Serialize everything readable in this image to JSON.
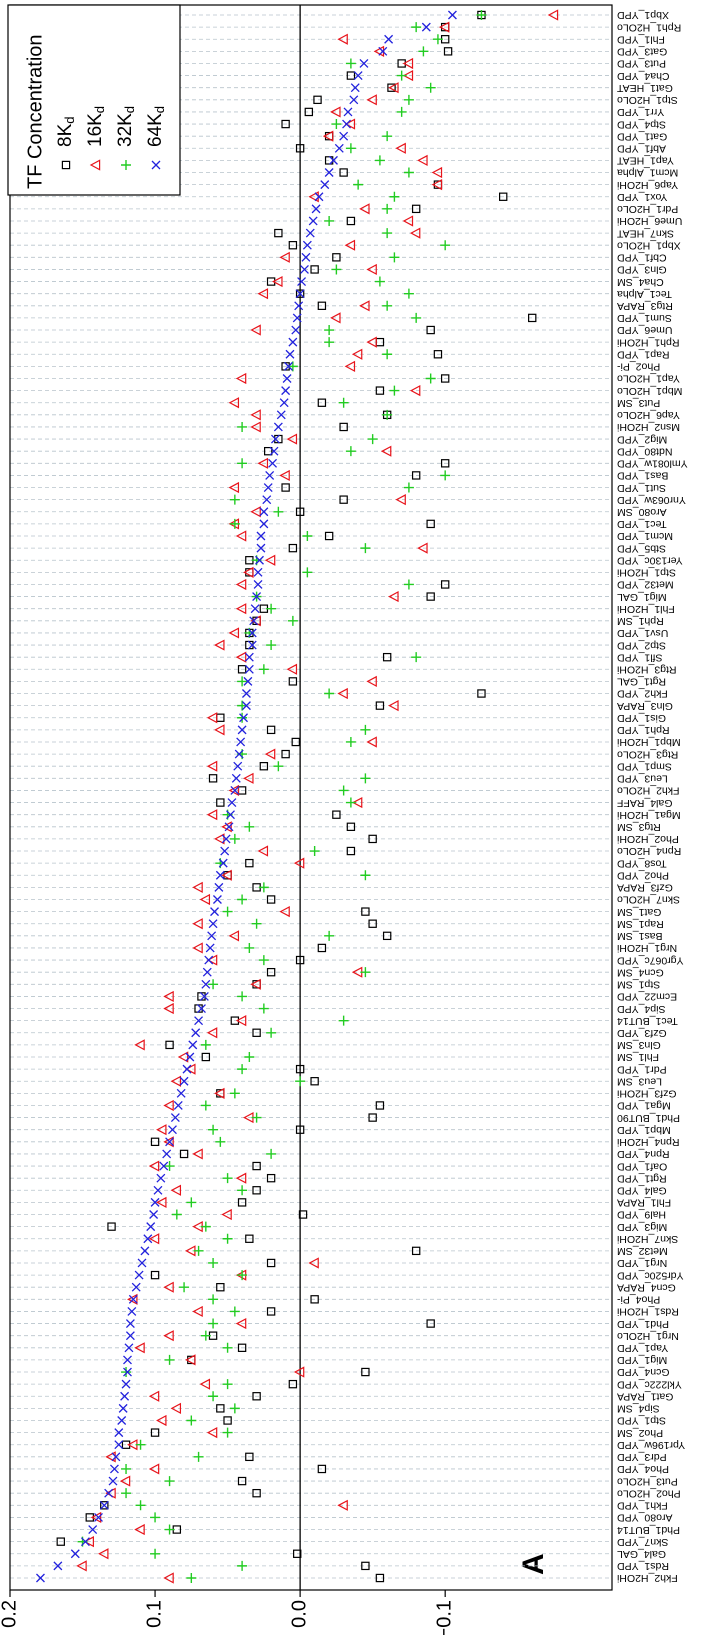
{
  "chart_data": {
    "type": "scatter",
    "annotation": "A",
    "legend_title": "TF Concentration",
    "legend": "top-right",
    "categories": [
      "Fkh2_H2OHi",
      "Rds1_YPD",
      "Gal4_GAL",
      "Skn7_YPD",
      "Phd1_BUT14",
      "Aro80_YPD",
      "Fkh1_YPD",
      "Pho2_H2OLo",
      "Put3_H2OLo",
      "Pho4_YPD",
      "Pdr3_YPD",
      "Ypr196w_YPD",
      "Pho2_SM",
      "Stp1_YPD",
      "Sip4_SM",
      "Gat1_RAPA",
      "Ykl222c_YPD",
      "Gcn4_YPD",
      "Mig1_YPD",
      "Yap1_YPD",
      "Nrg1_H2OLo",
      "Phd1_YPD",
      "Rds1_H2OHi",
      "Pho4_Pi-",
      "Gcn4_RAPA",
      "Ydr520c_YPD",
      "Nrg1_YPD",
      "Met32_SM",
      "Skn7_H2OHi",
      "Mig3_YPD",
      "Hal9_YPD",
      "Fhl1_RAPA",
      "Gal4_YPD",
      "Rgt1_YPD",
      "Oaf1_YPD",
      "Rpn4_YPD",
      "Rpn4_H2OHi",
      "Mbp1_YPD",
      "Phd1_BUT90",
      "Mga1_YPD",
      "Gzf3_H2OHi",
      "Leu3_SM",
      "Pdr1_YPD",
      "Fhl1_SM",
      "Gln3_SM",
      "Gzf3_YPD",
      "Tec1_BUT14",
      "Sip4_YPD",
      "Ecm22_YPD",
      "Stp1_SM",
      "Gcn4_SM",
      "Ygr067c_YPD",
      "Nrg1_H2OHi",
      "Bas1_SM",
      "Rap1_SM",
      "Gat1_SM",
      "Skn7_H2OLo",
      "Gzf3_RAPA",
      "Pho2_YPD",
      "Tos8_YPD",
      "Rpn4_H2OLo",
      "Pho2_H2OHi",
      "Rtg3_SM",
      "Mga1_H2OHi",
      "Gal4_RAFF",
      "Fkh2_H2OLo",
      "Leu3_YPD",
      "Smp1_YPD",
      "Rtg3_H2OLo",
      "Mbp1_H2OHi",
      "Rph1_YPD",
      "Gis1_YPD",
      "Gln3_RAPA",
      "Fkh2_YPD",
      "Rgt1_GAL",
      "Rtg3_H2OHi",
      "Sfl1_YPD",
      "Stp2_YPD",
      "Usv1_YPD",
      "Rph1_SM",
      "Fhl1_H2OHi",
      "Mig1_GAL",
      "Met32_YPD",
      "Stp1_H2OHi",
      "Yer130c_YPD",
      "Stb5_YPD",
      "Mcm1_YPD",
      "Tec1_YPD",
      "Aro80_SM",
      "Ynr063w_YPD",
      "Sut1_YPD",
      "Bas1_YPD",
      "Yml081w_YPD",
      "Ndt80_YPD",
      "Mig2_YPD",
      "Msn2_H2OHi",
      "Yap6_H2OLo",
      "Put3_SM",
      "Mbp1_H2OLo",
      "Yap1_H2OLo",
      "Pho2_Pi-",
      "Rap1_YPD",
      "Rph1_H2OHi",
      "Ume6_YPD",
      "Sum1_YPD",
      "Rtg3_RAPA",
      "Tec1_Alpha",
      "Cha4_SM",
      "Gln3_YPD",
      "Cbf1_YPD",
      "Xbp1_H2OLo",
      "Skn7_HEAT",
      "Ume6_H2OHi",
      "Pdr1_H2OLo",
      "Yox1_YPD",
      "Yap6_H2OHi",
      "Mcm1_Alpha",
      "Yap1_HEAT",
      "Abf1_YPD",
      "Gat1_YPD",
      "Stp4_YPD",
      "Yrr1_YPD",
      "Stp1_H2OLo",
      "Gat1_HEAT",
      "Cha4_YPD",
      "Put3_YPD",
      "Gat3_YPD",
      "Fhl1_YPD",
      "Rph1_H2OLo",
      "Xbp1_YPD"
    ],
    "label_colors": [
      "#3355dd",
      "#3355dd",
      "#3355dd",
      "#3355dd",
      "#000",
      "#3355dd",
      "#3355dd",
      "#000",
      "#000",
      "#3355dd",
      "#3355dd",
      "#3355dd",
      "#000",
      "#000",
      "#000",
      "#000",
      "#3355dd",
      "#3355dd",
      "#3355dd",
      "#3355dd",
      "#3355dd",
      "#000",
      "#000",
      "#000",
      "#000",
      "#3355dd",
      "#000",
      "#3355dd",
      "#000",
      "#3355dd",
      "#3355dd",
      "#3355dd",
      "#000",
      "#3355dd",
      "#3355dd",
      "#3355dd",
      "#000",
      "#3355dd",
      "#000",
      "#3355dd",
      "#000",
      "#000",
      "#3355dd",
      "#000",
      "#3355dd",
      "#000",
      "#000",
      "#000",
      "#3355dd",
      "#000",
      "#000",
      "#3355dd",
      "#000",
      "#3355dd",
      "#3355dd",
      "#000",
      "#000",
      "#000",
      "#000",
      "#3355dd",
      "#000",
      "#000",
      "#000",
      "#000",
      "#000",
      "#000",
      "#000",
      "#3355dd",
      "#000",
      "#000",
      "#3355dd",
      "#3355dd",
      "#000",
      "#000",
      "#3355dd",
      "#000",
      "#3355dd",
      "#3355dd",
      "#3355dd",
      "#000",
      "#000",
      "#000",
      "#000",
      "#000",
      "#3355dd",
      "#3355dd",
      "#3355dd",
      "#000",
      "#000",
      "#3355dd",
      "#3355dd",
      "#000",
      "#3355dd",
      "#3355dd",
      "#3355dd",
      "#000",
      "#3355dd",
      "#000",
      "#000",
      "#000",
      "#000",
      "#000",
      "#000",
      "#3355dd",
      "#3355dd",
      "#000",
      "#000",
      "#3355dd",
      "#000",
      "#000",
      "#3355dd",
      "#000",
      "#000",
      "#000",
      "#3355dd",
      "#000",
      "#000",
      "#000",
      "#3355dd",
      "#000",
      "#3355dd",
      "#3355dd",
      "#000",
      "#000",
      "#000",
      "#000",
      "#3355dd",
      "#000",
      "#000",
      "#000"
    ],
    "ylim": [
      -0.215,
      0.2
    ],
    "yticks": [
      {
        "value": -0.1,
        "label": "−0.1"
      },
      {
        "value": 0,
        "label": "0.0"
      },
      {
        "value": 0.1,
        "label": "0.1"
      },
      {
        "value": 0.2,
        "label": "0.2"
      }
    ],
    "series": [
      {
        "name": "8Kd",
        "color": "#000000",
        "marker": "square",
        "values": [
          -0.055,
          -0.045,
          0.002,
          0.165,
          0.085,
          0.145,
          0.135,
          0.03,
          0.04,
          -0.015,
          0.035,
          0.12,
          0.1,
          0.05,
          0.055,
          0.03,
          0.005,
          -0.045,
          0.075,
          0.04,
          0.06,
          -0.09,
          0.02,
          -0.01,
          0.055,
          0.1,
          0.02,
          -0.08,
          0.035,
          0.13,
          -0.002,
          0.04,
          0.03,
          0.02,
          0.03,
          0.08,
          0.1,
          0.0,
          -0.05,
          -0.055,
          0.055,
          -0.01,
          0.0,
          0.065,
          0.09,
          0.03,
          0.045,
          0.07,
          0.068,
          0.03,
          0.02,
          0.0,
          -0.015,
          -0.06,
          -0.05,
          -0.045,
          0.02,
          0.03,
          0.05,
          0.035,
          -0.035,
          -0.05,
          -0.035,
          -0.025,
          0.055,
          0.04,
          0.06,
          0.025,
          0.01,
          0.003,
          0.02,
          0.055,
          -0.055,
          -0.125,
          0.005,
          0.04,
          -0.06,
          0.035,
          0.035,
          0.03,
          0.025,
          -0.09,
          -0.1,
          0.035,
          0.035,
          0.005,
          -0.02,
          -0.09,
          0.0,
          -0.03,
          0.01,
          -0.08,
          -0.1,
          0.022,
          0.015,
          -0.03,
          -0.06,
          -0.015,
          -0.055,
          -0.1,
          0.01,
          -0.095,
          -0.055,
          -0.09,
          -0.16,
          -0.015,
          0.0,
          0.02,
          -0.01,
          -0.025,
          0.005,
          0.015,
          -0.035,
          -0.08,
          -0.14,
          -0.095,
          -0.03,
          -0.02,
          0.0,
          -0.02,
          0.01,
          -0.006,
          -0.012,
          -0.063,
          -0.035,
          -0.07,
          -0.102,
          -0.1,
          -0.1,
          -0.125
        ]
      },
      {
        "name": "16Kd",
        "color": "#e8141b",
        "marker": "triangle",
        "values": [
          0.09,
          0.15,
          0.135,
          0.145,
          0.11,
          0.14,
          -0.03,
          0.13,
          0.12,
          0.1,
          0.13,
          0.115,
          0.06,
          0.095,
          0.085,
          0.1,
          0.065,
          0.0,
          0.075,
          0.11,
          0.09,
          0.04,
          0.07,
          0.115,
          0.09,
          0.04,
          -0.01,
          0.075,
          0.1,
          0.07,
          0.05,
          0.095,
          0.085,
          0.04,
          0.1,
          0.07,
          0.09,
          0.095,
          0.035,
          0.09,
          0.055,
          0.085,
          0.075,
          0.08,
          0.11,
          0.06,
          0.04,
          0.09,
          0.09,
          0.03,
          -0.04,
          0.06,
          0.07,
          0.045,
          0.07,
          0.01,
          0.065,
          0.07,
          0.05,
          0.0,
          0.025,
          0.055,
          0.05,
          0.06,
          -0.04,
          0.045,
          0.035,
          0.06,
          0.02,
          -0.05,
          0.055,
          0.06,
          -0.065,
          -0.03,
          -0.05,
          0.005,
          0.04,
          0.055,
          0.045,
          0.03,
          0.04,
          -0.065,
          0.04,
          0.035,
          0.02,
          -0.085,
          0.04,
          0.045,
          0.03,
          -0.07,
          0.045,
          0.01,
          0.025,
          -0.06,
          0.005,
          0.03,
          0.03,
          0.045,
          -0.08,
          0.04,
          -0.035,
          -0.04,
          -0.05,
          0.03,
          -0.025,
          -0.045,
          0.025,
          0.015,
          -0.05,
          0.01,
          -0.035,
          -0.08,
          -0.075,
          -0.045,
          -0.01,
          -0.095,
          -0.095,
          -0.085,
          -0.07,
          -0.02,
          -0.035,
          -0.025,
          -0.05,
          -0.065,
          -0.075,
          -0.075,
          -0.055,
          -0.03,
          -0.1,
          -0.175
        ]
      },
      {
        "name": "32Kd",
        "color": "#22cc22",
        "marker": "plus",
        "values": [
          0.075,
          0.04,
          0.1,
          0.15,
          0.09,
          0.1,
          0.11,
          0.12,
          0.09,
          0.12,
          0.07,
          0.11,
          0.05,
          0.075,
          0.045,
          0.06,
          0.05,
          0.12,
          0.09,
          0.05,
          0.065,
          0.06,
          0.045,
          0.06,
          0.08,
          0.04,
          0.06,
          0.07,
          0.05,
          0.065,
          0.085,
          0.075,
          0.04,
          0.05,
          0.09,
          0.02,
          0.055,
          0.06,
          0.03,
          0.065,
          0.045,
          0.0,
          0.04,
          0.035,
          0.065,
          0.02,
          -0.03,
          0.025,
          0.04,
          0.06,
          -0.045,
          0.025,
          0.035,
          -0.02,
          0.03,
          0.05,
          0.04,
          0.025,
          -0.045,
          0.055,
          -0.01,
          0.045,
          0.035,
          0.05,
          -0.035,
          -0.03,
          -0.045,
          0.015,
          0.04,
          -0.035,
          -0.045,
          0.04,
          0.04,
          -0.02,
          0.04,
          0.025,
          -0.08,
          0.02,
          0.035,
          0.005,
          0.02,
          0.03,
          -0.075,
          -0.005,
          0.03,
          -0.045,
          -0.005,
          0.045,
          0.015,
          0.045,
          -0.075,
          -0.1,
          0.04,
          -0.035,
          -0.05,
          0.04,
          -0.06,
          -0.03,
          -0.065,
          -0.09,
          0.005,
          -0.06,
          -0.02,
          -0.02,
          -0.08,
          -0.06,
          -0.075,
          -0.055,
          -0.025,
          -0.065,
          -0.1,
          -0.06,
          -0.02,
          -0.06,
          -0.065,
          -0.04,
          -0.075,
          -0.055,
          -0.035,
          -0.06,
          -0.025,
          -0.07,
          -0.075,
          -0.09,
          -0.07,
          -0.035,
          -0.085,
          -0.095,
          -0.08,
          -0.125
        ]
      },
      {
        "name": "64Kd",
        "color": "#2222dd",
        "marker": "cross",
        "values": [
          0.179,
          0.167,
          0.155,
          0.148,
          0.143,
          0.139,
          0.135,
          0.132,
          0.129,
          0.128,
          0.127,
          0.125,
          0.125,
          0.123,
          0.122,
          0.121,
          0.12,
          0.119,
          0.119,
          0.118,
          0.117,
          0.117,
          0.116,
          0.115,
          0.113,
          0.111,
          0.109,
          0.107,
          0.105,
          0.103,
          0.101,
          0.1,
          0.098,
          0.096,
          0.094,
          0.092,
          0.09,
          0.088,
          0.086,
          0.084,
          0.082,
          0.08,
          0.078,
          0.076,
          0.074,
          0.072,
          0.07,
          0.068,
          0.066,
          0.065,
          0.064,
          0.063,
          0.062,
          0.061,
          0.06,
          0.059,
          0.057,
          0.056,
          0.055,
          0.053,
          0.052,
          0.051,
          0.049,
          0.048,
          0.047,
          0.045,
          0.044,
          0.043,
          0.042,
          0.041,
          0.04,
          0.039,
          0.037,
          0.037,
          0.036,
          0.035,
          0.035,
          0.033,
          0.033,
          0.032,
          0.031,
          0.03,
          0.029,
          0.029,
          0.028,
          0.027,
          0.027,
          0.025,
          0.025,
          0.023,
          0.022,
          0.021,
          0.019,
          0.018,
          0.017,
          0.015,
          0.013,
          0.011,
          0.01,
          0.009,
          0.008,
          0.007,
          0.005,
          0.003,
          0.002,
          0.001,
          0.0,
          -0.001,
          -0.003,
          -0.004,
          -0.005,
          -0.007,
          -0.009,
          -0.011,
          -0.013,
          -0.017,
          -0.02,
          -0.023,
          -0.027,
          -0.03,
          -0.032,
          -0.033,
          -0.037,
          -0.038,
          -0.04,
          -0.044,
          -0.057,
          -0.061,
          -0.087,
          -0.105
        ]
      }
    ]
  }
}
